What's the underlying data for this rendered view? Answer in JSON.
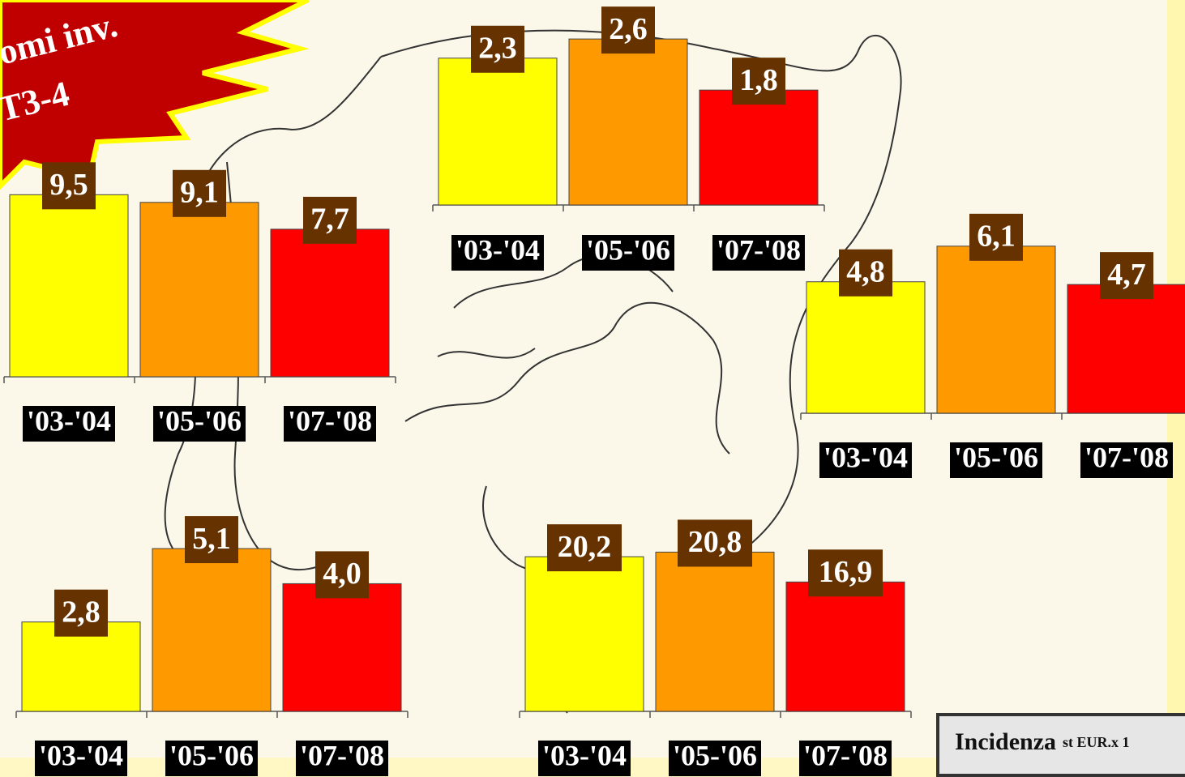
{
  "banner": {
    "lines": [
      "omi inv.",
      "T3-4"
    ]
  },
  "footer": {
    "main": "Incidenza",
    "small": "st EUR.x 1"
  },
  "chart_data": [
    {
      "type": "bar",
      "categories": [
        "'03-'04",
        "'05-'06",
        "'07-'08"
      ],
      "values": [
        9.5,
        9.1,
        7.7
      ],
      "value_labels": [
        "9,5",
        "9,1",
        "7,7"
      ],
      "colors": [
        "#ffff00",
        "#ff9900",
        "#ff0000"
      ]
    },
    {
      "type": "bar",
      "categories": [
        "'03-'04",
        "'05-'06",
        "'07-'08"
      ],
      "values": [
        2.3,
        2.6,
        1.8
      ],
      "value_labels": [
        "2,3",
        "2,6",
        "1,8"
      ],
      "colors": [
        "#ffff00",
        "#ff9900",
        "#ff0000"
      ]
    },
    {
      "type": "bar",
      "categories": [
        "'03-'04",
        "'05-'06",
        "'07-'08"
      ],
      "values": [
        4.8,
        6.1,
        4.7
      ],
      "value_labels": [
        "4,8",
        "6,1",
        "4,7"
      ],
      "colors": [
        "#ffff00",
        "#ff9900",
        "#ff0000"
      ]
    },
    {
      "type": "bar",
      "categories": [
        "'03-'04",
        "'05-'06",
        "'07-'08"
      ],
      "values": [
        2.8,
        5.1,
        4.0
      ],
      "value_labels": [
        "2,8",
        "5,1",
        "4,0"
      ],
      "colors": [
        "#ffff00",
        "#ff9900",
        "#ff0000"
      ]
    },
    {
      "type": "bar",
      "categories": [
        "'03-'04",
        "'05-'06",
        "'07-'08"
      ],
      "values": [
        20.2,
        20.8,
        16.9
      ],
      "value_labels": [
        "20,2",
        "20,8",
        "16,9"
      ],
      "colors": [
        "#ffff00",
        "#ff9900",
        "#ff0000"
      ]
    }
  ]
}
